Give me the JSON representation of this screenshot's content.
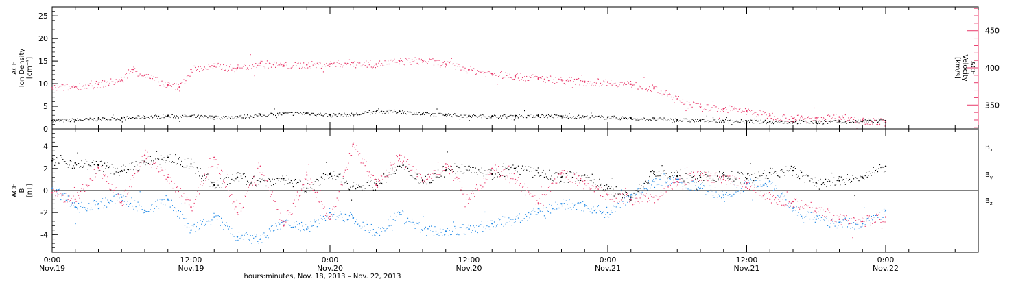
{
  "chart_data": [
    {
      "type": "scatter",
      "panel": "top",
      "ylabel_lines": [
        "ACE",
        "Ion Density",
        "[cm⁻³]"
      ],
      "ylim": [
        0,
        27
      ],
      "yticks": [
        0,
        5,
        10,
        15,
        20,
        25
      ],
      "y2label_lines": [
        "ACE",
        "Velocity",
        "[km/s]"
      ],
      "y2lim": [
        318,
        482
      ],
      "y2ticks": [
        350,
        400,
        450
      ],
      "grid": false,
      "series": [
        {
          "name": "Ion Density",
          "color": "#000000",
          "axis": "left",
          "x": [
            0,
            2,
            4,
            6,
            8,
            10,
            12,
            14,
            16,
            18,
            20,
            22,
            24,
            26,
            28,
            30,
            32,
            34,
            36,
            38,
            40,
            42,
            44,
            46,
            48,
            50,
            52,
            54,
            56,
            58,
            60,
            62,
            64,
            66,
            68,
            70,
            72
          ],
          "y": [
            1.8,
            2.0,
            2.2,
            2.4,
            2.7,
            2.9,
            2.8,
            2.6,
            2.7,
            3.1,
            3.4,
            3.5,
            3.1,
            3.2,
            3.8,
            3.9,
            3.3,
            3.2,
            2.9,
            2.8,
            2.9,
            3.0,
            2.8,
            2.7,
            2.6,
            2.4,
            2.2,
            2.0,
            1.9,
            1.8,
            1.7,
            1.6,
            1.6,
            1.5,
            1.6,
            1.7,
            1.8
          ]
        },
        {
          "name": "Velocity",
          "color": "#e8386a",
          "axis": "right",
          "x": [
            0,
            2,
            4,
            6,
            7,
            8,
            10,
            11,
            12,
            14,
            16,
            18,
            20,
            22,
            24,
            26,
            28,
            30,
            32,
            34,
            36,
            38,
            40,
            42,
            44,
            46,
            48,
            50,
            52,
            54,
            56,
            58,
            60,
            62,
            64,
            66,
            68,
            70,
            72
          ],
          "y": [
            373,
            375,
            378,
            384,
            398,
            390,
            377,
            374,
            398,
            402,
            400,
            406,
            403,
            404,
            405,
            407,
            405,
            409,
            410,
            405,
            398,
            392,
            389,
            386,
            384,
            381,
            381,
            378,
            372,
            358,
            347,
            345,
            342,
            336,
            332,
            333,
            334,
            330,
            327
          ]
        }
      ]
    },
    {
      "type": "scatter",
      "panel": "bottom",
      "ylabel_lines": [
        "ACE",
        "B",
        "[nT]"
      ],
      "ylim": [
        -5.6,
        5.6
      ],
      "yticks": [
        -4,
        -2,
        0,
        2,
        4
      ],
      "zero_line": true,
      "grid": false,
      "legend_position": "right",
      "series": [
        {
          "name": "Bx",
          "label_main": "B",
          "label_sub": "x",
          "color": "#000000",
          "x": [
            0,
            2,
            4,
            6,
            8,
            10,
            12,
            14,
            16,
            18,
            20,
            22,
            24,
            26,
            28,
            30,
            32,
            34,
            36,
            38,
            40,
            42,
            44,
            46,
            48,
            50,
            52,
            54,
            56,
            58,
            60,
            62,
            64,
            66,
            68,
            70,
            72
          ],
          "y": [
            2.7,
            2.5,
            2.3,
            1.8,
            2.6,
            3.0,
            2.4,
            0.5,
            1.2,
            0.8,
            1.1,
            0.2,
            1.5,
            0.4,
            0.6,
            2.2,
            0.9,
            1.8,
            2.2,
            1.5,
            2.0,
            1.6,
            1.2,
            1.4,
            0.2,
            -0.6,
            1.7,
            1.3,
            1.2,
            1.4,
            1.1,
            1.6,
            1.8,
            0.7,
            0.9,
            1.2,
            2.2
          ]
        },
        {
          "name": "By",
          "label_main": "B",
          "label_sub": "y",
          "color": "#1f88e5",
          "x": [
            0,
            2,
            4,
            6,
            8,
            10,
            12,
            14,
            16,
            18,
            20,
            22,
            24,
            26,
            28,
            30,
            32,
            34,
            36,
            38,
            40,
            42,
            44,
            46,
            48,
            50,
            52,
            54,
            56,
            58,
            60,
            62,
            64,
            66,
            68,
            70,
            72
          ],
          "y": [
            0.2,
            -1.5,
            -1.2,
            -0.6,
            -1.8,
            -0.8,
            -3.6,
            -2.4,
            -4.2,
            -4.4,
            -2.8,
            -3.5,
            -2.0,
            -2.5,
            -3.8,
            -2.0,
            -3.6,
            -3.7,
            -3.5,
            -3.0,
            -2.6,
            -2.0,
            -1.2,
            -1.4,
            -2.0,
            -0.4,
            0.8,
            1.0,
            0.2,
            -0.4,
            0.6,
            0.8,
            -1.6,
            -2.6,
            -2.9,
            -3.0,
            -1.8
          ]
        },
        {
          "name": "Bz",
          "label_main": "B",
          "label_sub": "z",
          "color": "#e8386a",
          "x": [
            0,
            2,
            4,
            6,
            8,
            10,
            12,
            14,
            16,
            18,
            20,
            22,
            24,
            26,
            28,
            30,
            32,
            34,
            36,
            38,
            40,
            42,
            44,
            46,
            48,
            50,
            52,
            54,
            56,
            58,
            60,
            62,
            64,
            66,
            68,
            70,
            72
          ],
          "y": [
            -0.2,
            -0.8,
            2.1,
            -1.0,
            3.2,
            1.2,
            -1.5,
            3.0,
            -2.0,
            2.2,
            -3.2,
            1.4,
            -2.6,
            4.2,
            0.5,
            3.2,
            0.8,
            2.4,
            -0.8,
            2.0,
            1.0,
            -1.2,
            1.6,
            0.6,
            -0.4,
            -0.8,
            -0.6,
            0.8,
            1.4,
            1.0,
            0.7,
            -0.8,
            -1.0,
            -1.6,
            -2.6,
            -2.8,
            -2.4
          ]
        }
      ]
    }
  ],
  "x_axis": {
    "xlim_hours": [
      0,
      80
    ],
    "major_ticks": [
      {
        "hour": 0,
        "time": "0:00",
        "date": "Nov.19"
      },
      {
        "hour": 12,
        "time": "12:00",
        "date": "Nov.19"
      },
      {
        "hour": 24,
        "time": "0:00",
        "date": "Nov.20"
      },
      {
        "hour": 36,
        "time": "12:00",
        "date": "Nov.20"
      },
      {
        "hour": 48,
        "time": "0:00",
        "date": "Nov.21"
      },
      {
        "hour": 60,
        "time": "12:00",
        "date": "Nov.21"
      },
      {
        "hour": 72,
        "time": "0:00",
        "date": "Nov.22"
      }
    ],
    "minor_step_hours": 2,
    "caption": "hours:minutes, Nov. 18, 2013 – Nov. 22, 2013"
  }
}
